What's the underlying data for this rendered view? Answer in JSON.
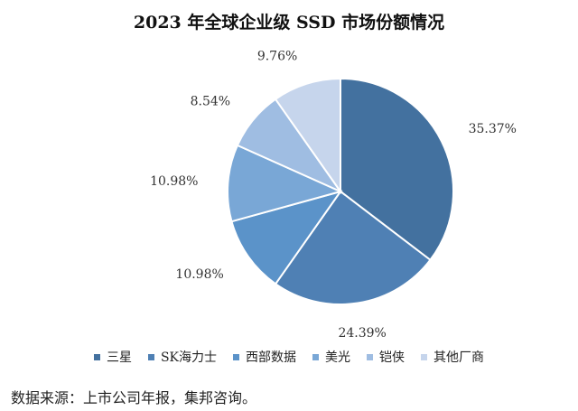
{
  "chart_data": {
    "type": "pie",
    "title": "2023 年全球企业级 SSD 市场份额情况",
    "categories": [
      "三星",
      "SK海力士",
      "西部数据",
      "美光",
      "铠侠",
      "其他厂商"
    ],
    "values": [
      35.37,
      24.39,
      10.98,
      10.98,
      8.54,
      9.76
    ],
    "value_labels": [
      "35.37%",
      "24.39%",
      "10.98%",
      "10.98%",
      "8.54%",
      "9.76%"
    ],
    "colors": [
      "#43719f",
      "#4f80b4",
      "#5b93c9",
      "#79a7d6",
      "#9fbde2",
      "#c6d5ec"
    ],
    "legend_position": "bottom"
  },
  "source_note": "数据来源：上市公司年报，集邦咨询。"
}
